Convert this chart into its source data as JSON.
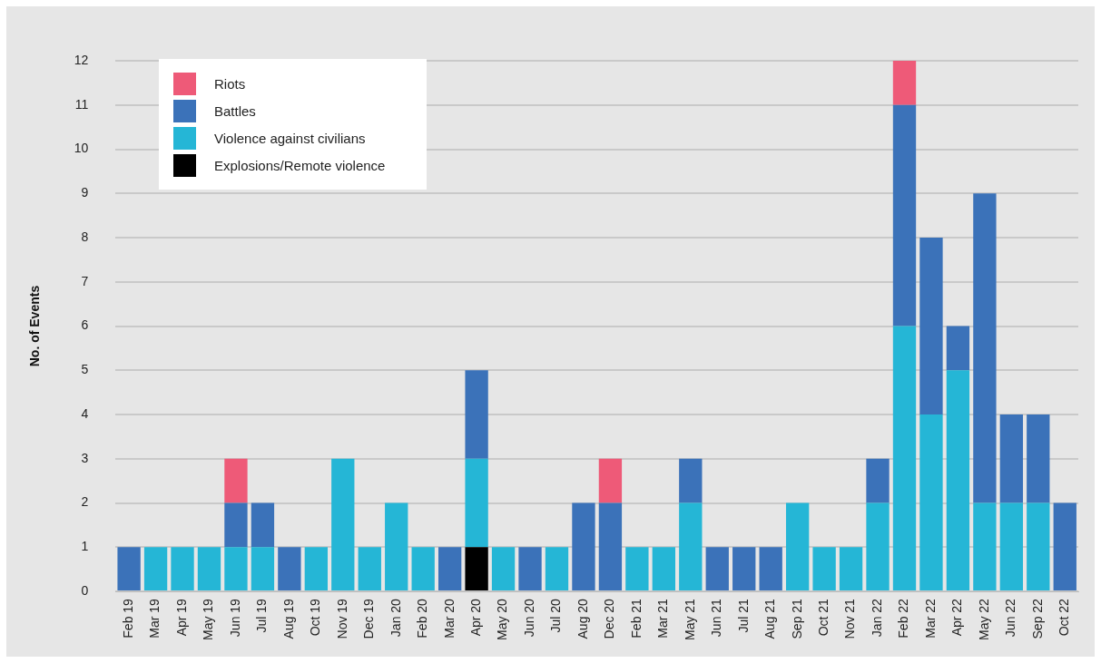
{
  "chart_data": {
    "type": "bar",
    "stacked": true,
    "ylabel": "No. of Events",
    "categories": [
      "Feb 19",
      "Mar 19",
      "Apr 19",
      "May 19",
      "Jun 19",
      "Jul 19",
      "Aug 19",
      "Oct 19",
      "Nov 19",
      "Dec 19",
      "Jan 20",
      "Feb 20",
      "Mar 20",
      "Apr 20",
      "May 20",
      "Jun 20",
      "Jul 20",
      "Aug 20",
      "Dec 20",
      "Feb 21",
      "Mar 21",
      "May 21",
      "Jun 21",
      "Jul 21",
      "Aug 21",
      "Sep 21",
      "Oct 21",
      "Nov 21",
      "Jan 22",
      "Feb 22",
      "Mar 22",
      "Apr 22",
      "May 22",
      "Jun 22",
      "Sep 22",
      "Oct 22"
    ],
    "series": [
      {
        "name": "Explosions/Remote violence",
        "color": "#000000",
        "values": [
          null,
          null,
          null,
          null,
          null,
          null,
          null,
          null,
          null,
          null,
          null,
          null,
          null,
          1,
          null,
          null,
          null,
          null,
          null,
          null,
          null,
          null,
          null,
          null,
          null,
          null,
          null,
          null,
          null,
          null,
          null,
          null,
          null,
          null,
          null,
          null
        ]
      },
      {
        "name": "Violence against civilians",
        "color": "#25b6d6",
        "values": [
          null,
          1,
          1,
          1,
          1,
          1,
          null,
          1,
          3,
          1,
          2,
          1,
          null,
          2,
          1,
          null,
          1,
          null,
          null,
          1,
          1,
          2,
          null,
          null,
          null,
          2,
          1,
          1,
          2,
          6,
          4,
          5,
          2,
          2,
          2,
          null
        ]
      },
      {
        "name": "Battles",
        "color": "#3b72b9",
        "values": [
          1,
          null,
          null,
          null,
          1,
          1,
          1,
          null,
          null,
          null,
          null,
          null,
          1,
          2,
          null,
          1,
          null,
          2,
          2,
          null,
          null,
          1,
          1,
          1,
          1,
          null,
          null,
          null,
          1,
          5,
          4,
          1,
          7,
          2,
          2,
          2
        ]
      },
      {
        "name": "Riots",
        "color": "#ee5a78",
        "values": [
          null,
          null,
          null,
          null,
          1,
          null,
          null,
          null,
          null,
          null,
          null,
          null,
          null,
          null,
          null,
          null,
          null,
          null,
          1,
          null,
          null,
          null,
          null,
          null,
          null,
          null,
          null,
          null,
          null,
          1,
          null,
          null,
          null,
          null,
          null,
          null
        ]
      }
    ],
    "ylim": [
      0,
      12
    ],
    "yticks": [
      0,
      1,
      2,
      3,
      4,
      5,
      6,
      7,
      8,
      9,
      10,
      11,
      12
    ],
    "grid": "y",
    "legend": "top left"
  }
}
